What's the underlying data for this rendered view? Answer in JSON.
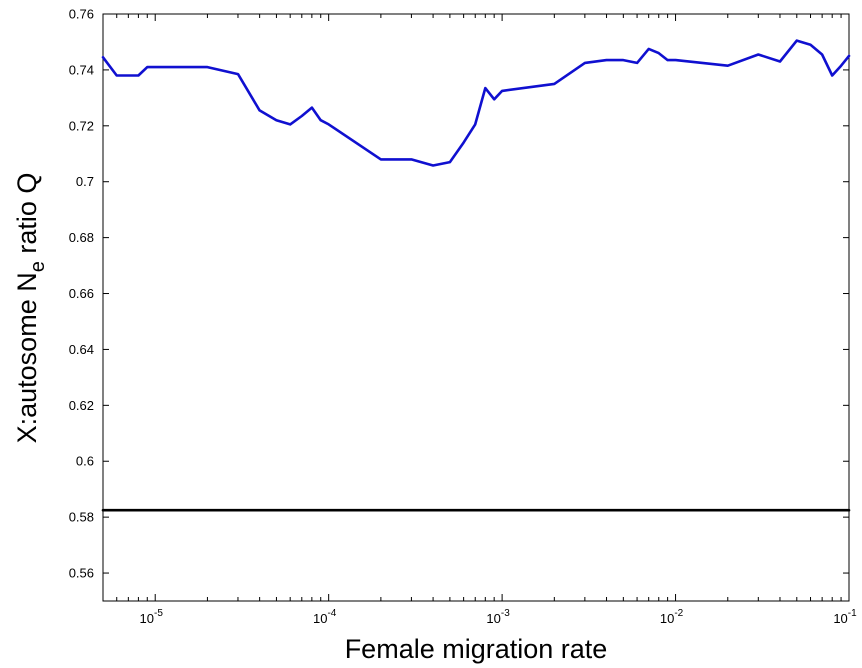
{
  "chart_data": {
    "type": "line",
    "xlabel": "Female migration rate",
    "ylabel": {
      "prefix": "X:autosome N",
      "subscript": "e",
      "suffix": " ratio Q"
    },
    "x_scale": "log",
    "xlim": [
      5e-06,
      0.1
    ],
    "ylim": [
      0.55,
      0.76
    ],
    "x_ticks": [
      {
        "value": 1e-05,
        "base": "10",
        "exp": "-5"
      },
      {
        "value": 0.0001,
        "base": "10",
        "exp": "-4"
      },
      {
        "value": 0.001,
        "base": "10",
        "exp": "-3"
      },
      {
        "value": 0.01,
        "base": "10",
        "exp": "-2"
      },
      {
        "value": 0.1,
        "base": "10",
        "exp": "-1"
      }
    ],
    "y_ticks": [
      {
        "value": 0.56,
        "label": "0.56"
      },
      {
        "value": 0.58,
        "label": "0.58"
      },
      {
        "value": 0.6,
        "label": "0.6"
      },
      {
        "value": 0.62,
        "label": "0.62"
      },
      {
        "value": 0.64,
        "label": "0.64"
      },
      {
        "value": 0.66,
        "label": "0.66"
      },
      {
        "value": 0.68,
        "label": "0.68"
      },
      {
        "value": 0.7,
        "label": "0.7"
      },
      {
        "value": 0.72,
        "label": "0.72"
      },
      {
        "value": 0.74,
        "label": "0.74"
      },
      {
        "value": 0.76,
        "label": "0.76"
      }
    ],
    "grid": false,
    "series": [
      {
        "color": "#1010d0",
        "x": [
          5e-06,
          6e-06,
          7e-06,
          8e-06,
          9e-06,
          1e-05,
          2e-05,
          3e-05,
          4e-05,
          5e-05,
          6e-05,
          7e-05,
          8e-05,
          9e-05,
          0.0001,
          0.0002,
          0.0003,
          0.0004,
          0.0005,
          0.0006,
          0.0007,
          0.0008,
          0.0009,
          0.001,
          0.002,
          0.003,
          0.004,
          0.005,
          0.006,
          0.007,
          0.008,
          0.009,
          0.01,
          0.02,
          0.03,
          0.04,
          0.05,
          0.06,
          0.07,
          0.08,
          0.09,
          0.1
        ],
        "y": [
          0.7445,
          0.738,
          0.738,
          0.738,
          0.741,
          0.741,
          0.741,
          0.7385,
          0.7255,
          0.722,
          0.7205,
          0.7235,
          0.7265,
          0.722,
          0.7205,
          0.708,
          0.708,
          0.7058,
          0.707,
          0.714,
          0.7205,
          0.7335,
          0.7295,
          0.7325,
          0.735,
          0.7425,
          0.7435,
          0.7435,
          0.7425,
          0.7475,
          0.746,
          0.7435,
          0.7435,
          0.7415,
          0.7455,
          0.743,
          0.7505,
          0.749,
          0.7455,
          0.738,
          0.7415,
          0.745
        ]
      },
      {
        "color": "#000000",
        "x": [
          5e-06,
          0.1
        ],
        "y": [
          0.5825,
          0.5825
        ]
      }
    ]
  }
}
